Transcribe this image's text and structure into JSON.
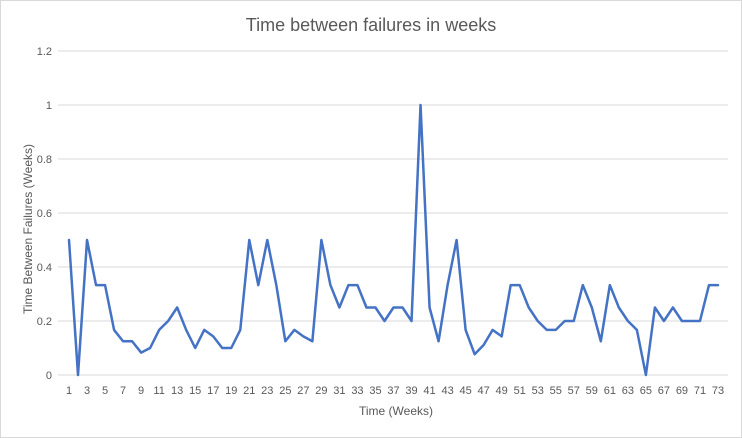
{
  "chart_data": {
    "type": "line",
    "title": "Time between failures in weeks",
    "xlabel": "Time (Weeks)",
    "ylabel": "Time Between Failures (Weeks)",
    "ylim": [
      0,
      1.2
    ],
    "yticks": [
      "0",
      "0.2",
      "0.4",
      "0.6",
      "0.8",
      "1",
      "1.2"
    ],
    "yticks_values": [
      0,
      0.2,
      0.4,
      0.6,
      0.8,
      1,
      1.2
    ],
    "grid": true,
    "legend": "none",
    "line_color": "#4472c4",
    "x": [
      1,
      2,
      3,
      4,
      5,
      6,
      7,
      8,
      9,
      10,
      11,
      12,
      13,
      14,
      15,
      16,
      17,
      18,
      19,
      20,
      21,
      22,
      23,
      24,
      25,
      26,
      27,
      28,
      29,
      30,
      31,
      32,
      33,
      34,
      35,
      36,
      37,
      38,
      39,
      40,
      41,
      42,
      43,
      44,
      45,
      46,
      47,
      48,
      49,
      50,
      51,
      52,
      53,
      54,
      55,
      56,
      57,
      58,
      59,
      60,
      61,
      62,
      63,
      64,
      65,
      66,
      67,
      68,
      69,
      70,
      71,
      72,
      73
    ],
    "xtick_labels": [
      1,
      3,
      5,
      7,
      9,
      11,
      13,
      15,
      17,
      19,
      21,
      23,
      25,
      27,
      29,
      31,
      33,
      35,
      37,
      39,
      41,
      43,
      45,
      47,
      49,
      51,
      53,
      55,
      57,
      59,
      61,
      63,
      65,
      67,
      69,
      71,
      73
    ],
    "series": [
      {
        "values": [
          0.5,
          0,
          0.5,
          0.333,
          0.333,
          0.167,
          0.125,
          0.125,
          0.083,
          0.1,
          0.167,
          0.2,
          0.25,
          0.167,
          0.1,
          0.167,
          0.143,
          0.1,
          0.1,
          0.167,
          0.5,
          0.333,
          0.5,
          0.333,
          0.125,
          0.167,
          0.143,
          0.125,
          0.5,
          0.333,
          0.25,
          0.333,
          0.333,
          0.25,
          0.25,
          0.2,
          0.25,
          0.25,
          0.2,
          1,
          0.25,
          0.125,
          0.333,
          0.5,
          0.167,
          0.077,
          0.111,
          0.167,
          0.143,
          0.333,
          0.333,
          0.25,
          0.2,
          0.167,
          0.167,
          0.2,
          0.2,
          0.333,
          0.25,
          0.125,
          0.333,
          0.25,
          0.2,
          0.167,
          0,
          0.25,
          0.2,
          0.25,
          0.2,
          0.2,
          0.2,
          0.333,
          0.333
        ]
      }
    ]
  }
}
